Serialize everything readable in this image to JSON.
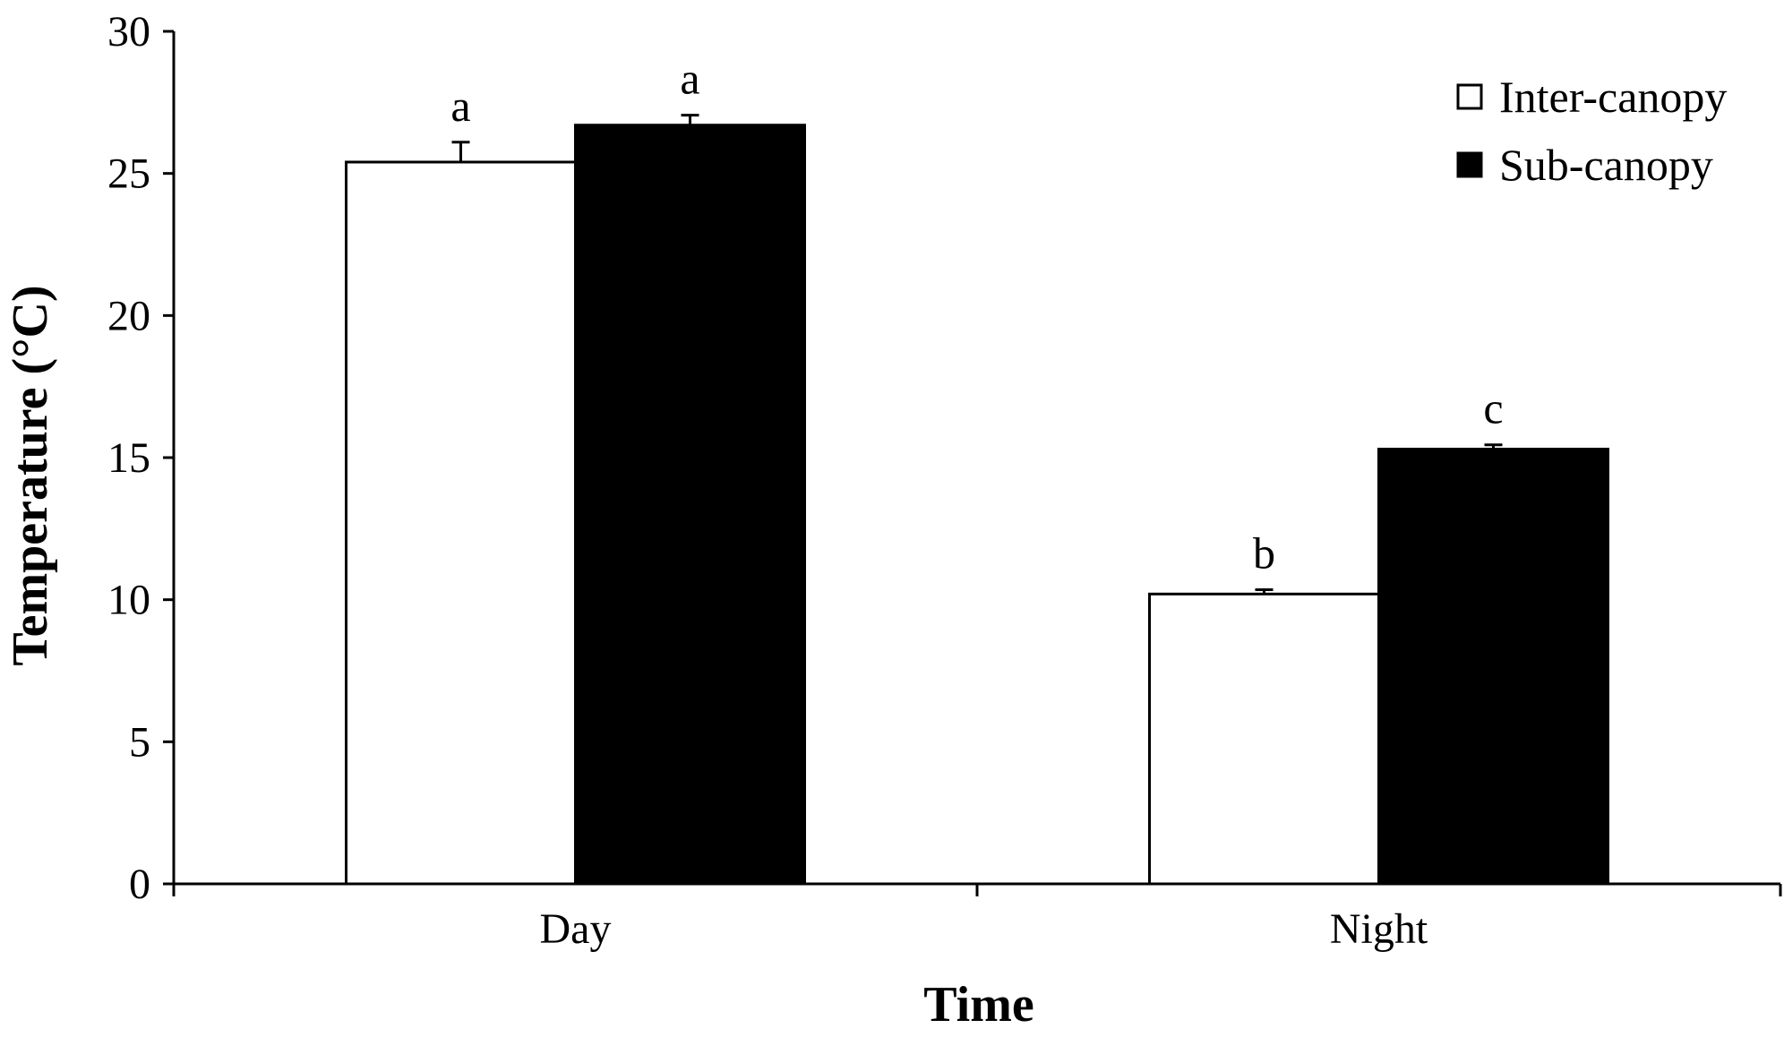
{
  "chart_data": {
    "type": "bar",
    "title": "",
    "xlabel": "Time",
    "ylabel": "Temperature (°C)",
    "categories": [
      "Day",
      "Night"
    ],
    "ylim": [
      0,
      30
    ],
    "yticks": [
      0,
      5,
      10,
      15,
      20,
      25,
      30
    ],
    "grid": false,
    "legend_position": "top-right",
    "series": [
      {
        "name": "Inter-canopy",
        "values": [
          25.4,
          10.2
        ],
        "errors": [
          0.7,
          0.15
        ],
        "labels": [
          "a",
          "b"
        ],
        "fill": "#ffffff"
      },
      {
        "name": "Sub-canopy",
        "values": [
          26.7,
          15.3
        ],
        "errors": [
          0.35,
          0.15
        ],
        "labels": [
          "a",
          "c"
        ],
        "fill": "#000000"
      }
    ]
  }
}
